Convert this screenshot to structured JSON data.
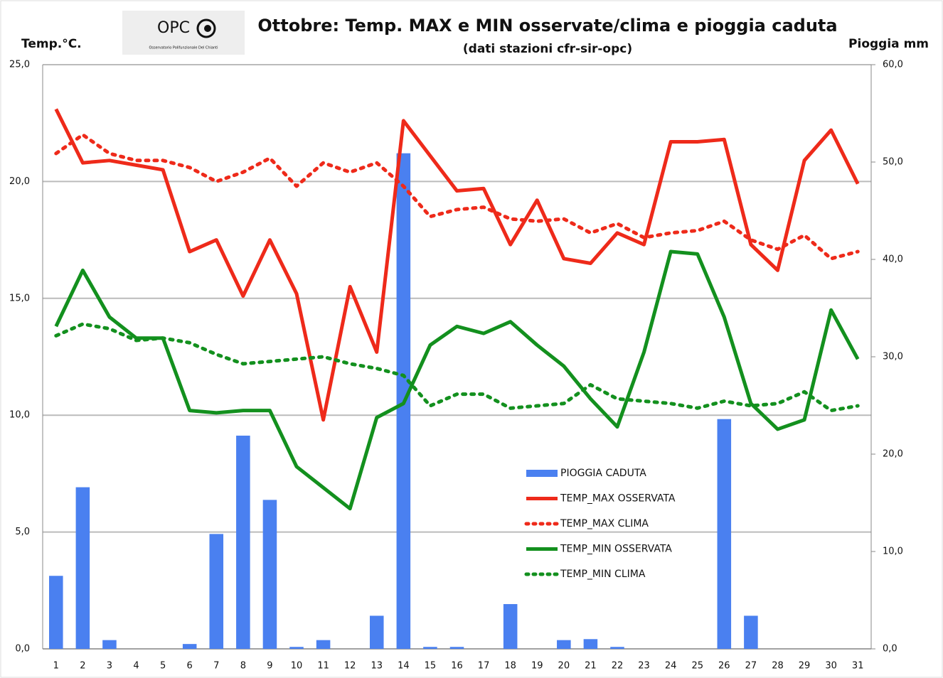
{
  "chart_data": {
    "type": "bar_line",
    "title": "Ottobre: Temp. MAX e MIN osservate/clima e pioggia caduta",
    "subtitle": "(dati stazioni cfr-sir-opc)",
    "logo_text": "OPC",
    "logo_subtext": "Osservatorio Polifunzionale Del Chianti",
    "y_label": "Temp.°C.",
    "y2_label": "Pioggia mm",
    "categories": [
      "1",
      "2",
      "3",
      "4",
      "5",
      "6",
      "7",
      "8",
      "9",
      "10",
      "11",
      "12",
      "13",
      "14",
      "15",
      "16",
      "17",
      "18",
      "19",
      "20",
      "21",
      "22",
      "23",
      "24",
      "25",
      "26",
      "27",
      "28",
      "29",
      "30",
      "31"
    ],
    "ylim": [
      0,
      25
    ],
    "yticks": [
      {
        "value": 0,
        "label": "0,0"
      },
      {
        "value": 5,
        "label": "5,0"
      },
      {
        "value": 10,
        "label": "10,0"
      },
      {
        "value": 15,
        "label": "15,0"
      },
      {
        "value": 20,
        "label": "20,0"
      },
      {
        "value": 25,
        "label": "25,0"
      }
    ],
    "y2lim": [
      0,
      60
    ],
    "y2ticks": [
      {
        "value": 0,
        "label": "0,0"
      },
      {
        "value": 10,
        "label": "10,0"
      },
      {
        "value": 20,
        "label": "20,0"
      },
      {
        "value": 30,
        "label": "30,0"
      },
      {
        "value": 40,
        "label": "40,0"
      },
      {
        "value": 50,
        "label": "50,0"
      },
      {
        "value": 60,
        "label": "60,0"
      }
    ],
    "grid": true,
    "series": [
      {
        "name": "PIOGGIA CADUTA",
        "kind": "bar",
        "axis": "y2",
        "color": "#4a80f0",
        "values": [
          7.5,
          16.6,
          0.9,
          0,
          0,
          0.5,
          11.8,
          21.9,
          15.3,
          0.2,
          0.9,
          0,
          3.4,
          50.9,
          0.2,
          0.2,
          0,
          4.6,
          0,
          0.9,
          1.0,
          0.2,
          0,
          0,
          0,
          23.6,
          3.4,
          0,
          0,
          0,
          0
        ]
      },
      {
        "name": "TEMP_MAX OSSERVATA",
        "kind": "line",
        "style": "solid",
        "color": "#ee2a1a",
        "values": [
          23.1,
          20.8,
          20.9,
          20.7,
          20.5,
          17.0,
          17.5,
          15.1,
          17.5,
          15.2,
          9.8,
          15.5,
          12.7,
          22.6,
          21.1,
          19.6,
          19.7,
          17.3,
          19.2,
          16.7,
          16.5,
          17.8,
          17.3,
          21.7,
          21.7,
          21.8,
          17.3,
          16.2,
          20.9,
          22.2,
          19.9
        ]
      },
      {
        "name": "TEMP_MAX CLIMA",
        "kind": "line",
        "style": "dotted",
        "color": "#ee2a1a",
        "values": [
          21.2,
          22.0,
          21.2,
          20.9,
          20.9,
          20.6,
          20.0,
          20.4,
          21.0,
          19.8,
          20.8,
          20.4,
          20.8,
          19.8,
          18.5,
          18.8,
          18.9,
          18.4,
          18.3,
          18.4,
          17.8,
          18.2,
          17.6,
          17.8,
          17.9,
          18.3,
          17.5,
          17.1,
          17.7,
          16.7,
          17.0
        ]
      },
      {
        "name": "TEMP_MIN OSSERVATA",
        "kind": "line",
        "style": "solid",
        "color": "#13901e",
        "values": [
          13.8,
          16.2,
          14.2,
          13.3,
          13.3,
          10.2,
          10.1,
          10.2,
          10.2,
          7.8,
          6.9,
          6.0,
          9.9,
          10.5,
          13.0,
          13.8,
          13.5,
          14.0,
          13.0,
          12.1,
          10.7,
          9.5,
          12.7,
          17.0,
          16.9,
          14.2,
          10.5,
          9.4,
          9.8,
          14.5,
          12.4
        ]
      },
      {
        "name": "TEMP_MIN CLIMA",
        "kind": "line",
        "style": "dotted",
        "color": "#13901e",
        "values": [
          13.4,
          13.9,
          13.7,
          13.2,
          13.3,
          13.1,
          12.6,
          12.2,
          12.3,
          12.4,
          12.5,
          12.2,
          12.0,
          11.7,
          10.4,
          10.9,
          10.9,
          10.3,
          10.4,
          10.5,
          11.3,
          10.7,
          10.6,
          10.5,
          10.3,
          10.6,
          10.4,
          10.5,
          11.0,
          10.2,
          10.4
        ]
      }
    ]
  }
}
